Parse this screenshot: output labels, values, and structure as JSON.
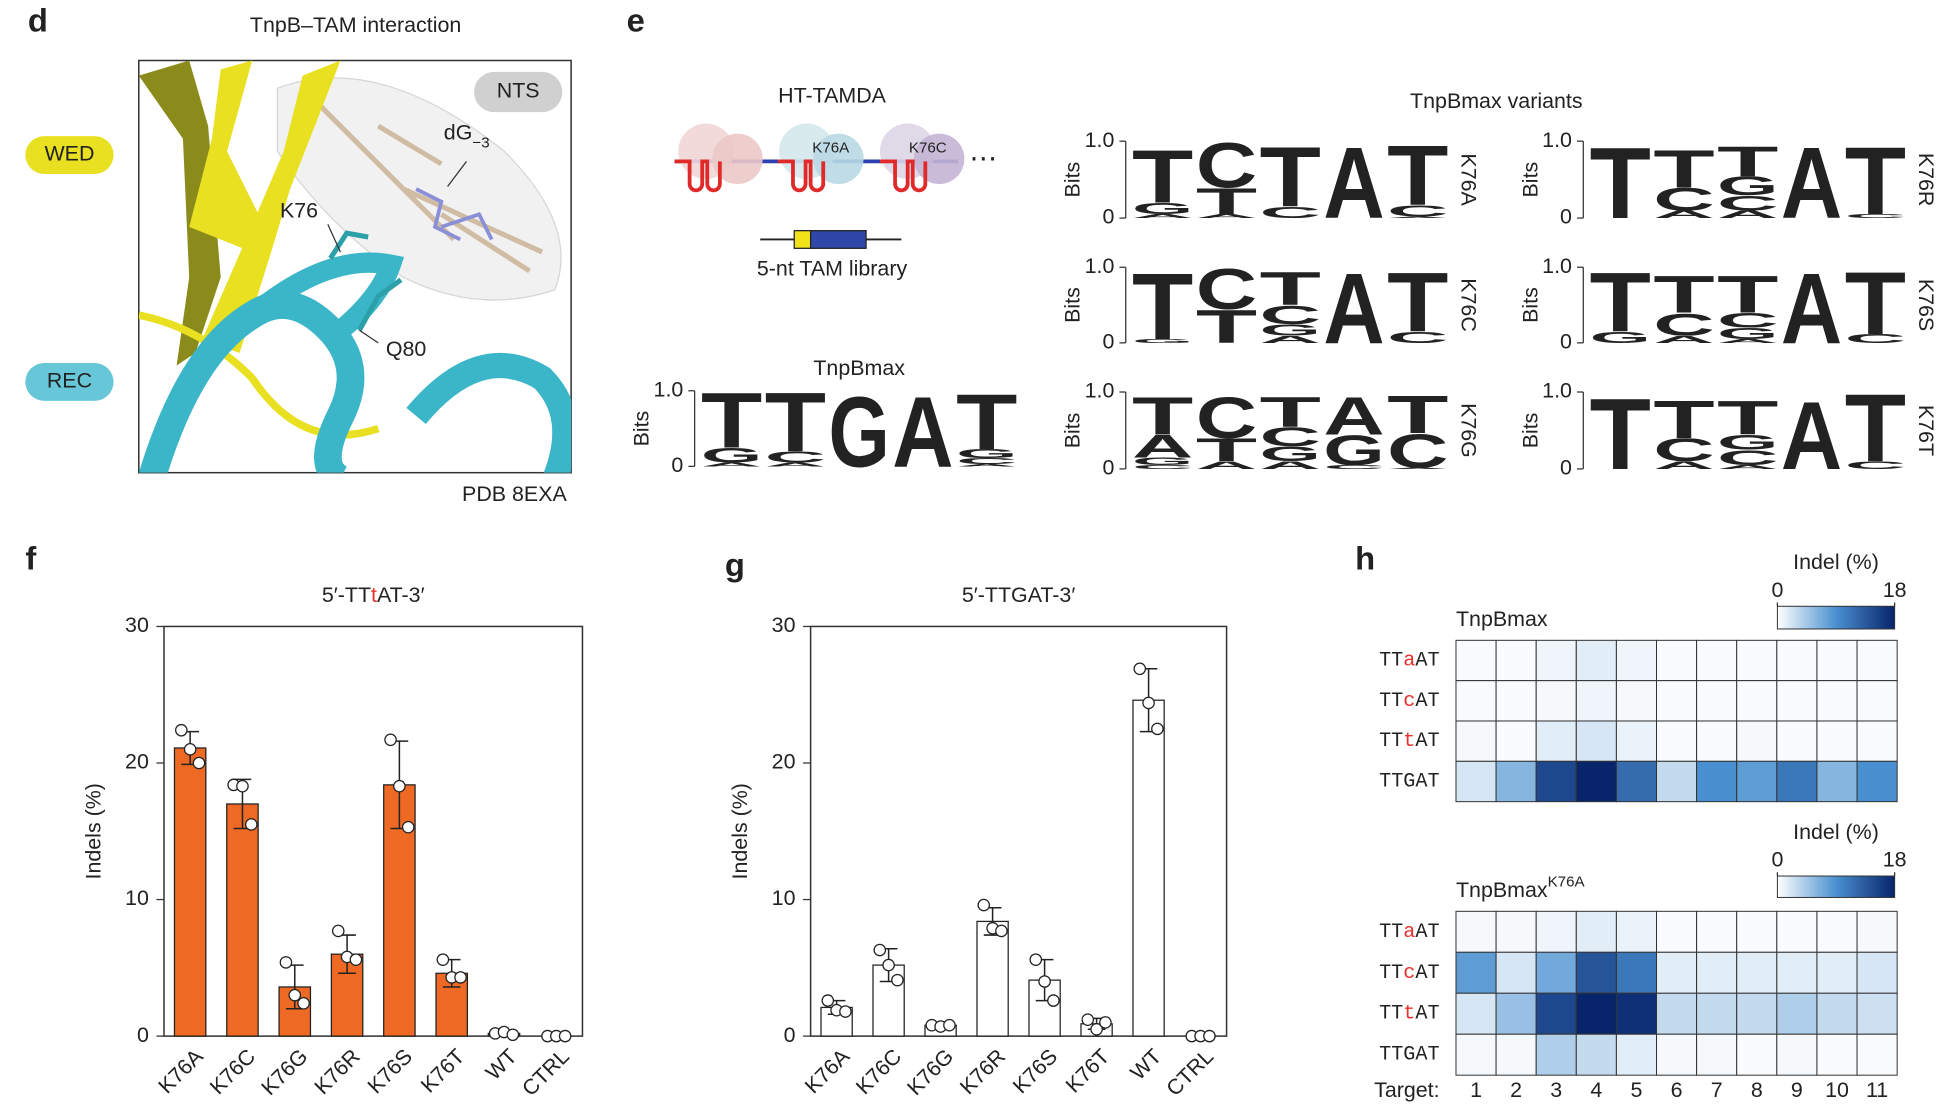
{
  "panel_labels": [
    "d",
    "e",
    "f",
    "g",
    "h"
  ],
  "structure": {
    "title": "TnpB–TAM interaction",
    "wed": "WED",
    "rec": "REC",
    "nts": "NTS",
    "nucleotide": "dG",
    "nucleotide_subscript": "−3",
    "residues": [
      "K76",
      "Q80"
    ],
    "source": "PDB 8EXA"
  },
  "schematic": {
    "title": "HT-TAMDA",
    "variants": [
      "K76A",
      "K76C"
    ],
    "ellipsis": "⋯",
    "library": "5-nt TAM library"
  },
  "logo_group_title": "TnpBmax variants",
  "chart_data": [
    {
      "type": "logo",
      "title": "TnpBmax",
      "ylabel": "Bits",
      "ylim": [
        0,
        1
      ],
      "yticks": [
        0,
        {
          "value": 1,
          "label": "1.0"
        }
      ],
      "series": [
        {
          "name": "A",
          "color": "#1f8f3a",
          "values": [
            0.05,
            0.05,
            0,
            0.95,
            0.03
          ]
        },
        {
          "name": "C",
          "color": "#2a3fb0",
          "values": [
            0,
            0.15,
            0,
            0,
            0.08
          ]
        },
        {
          "name": "G",
          "color": "#f5a01a",
          "values": [
            0.2,
            0,
            0.95,
            0,
            0.12
          ]
        },
        {
          "name": "T",
          "color": "#e8242a",
          "values": [
            0.75,
            0.8,
            0,
            0,
            0.75
          ]
        }
      ]
    },
    {
      "type": "logo",
      "label": "K76A",
      "ylabel": "Bits",
      "ylim": [
        0,
        1
      ],
      "yticks": [
        0,
        {
          "value": 1,
          "label": "1.0"
        }
      ],
      "series": [
        {
          "name": "A",
          "color": "#1f8f3a",
          "values": [
            0.05,
            0.05,
            0,
            0.95,
            0.02
          ]
        },
        {
          "name": "C",
          "color": "#2a3fb0",
          "values": [
            0,
            0.6,
            0.15,
            0,
            0.15
          ]
        },
        {
          "name": "G",
          "color": "#f5a01a",
          "values": [
            0.15,
            0,
            0,
            0,
            0
          ]
        },
        {
          "name": "T",
          "color": "#e8242a",
          "values": [
            0.7,
            0.35,
            0.8,
            0,
            0.8
          ]
        }
      ]
    },
    {
      "type": "logo",
      "label": "K76C",
      "ylabel": "Bits",
      "ylim": [
        0,
        1
      ],
      "yticks": [
        0,
        {
          "value": 1,
          "label": "1.0"
        }
      ],
      "series": [
        {
          "name": "A",
          "color": "#1f8f3a",
          "values": [
            0,
            0,
            0.1,
            0.95,
            0
          ]
        },
        {
          "name": "C",
          "color": "#2a3fb0",
          "values": [
            0,
            0.55,
            0.25,
            0,
            0.15
          ]
        },
        {
          "name": "G",
          "color": "#f5a01a",
          "values": [
            0.05,
            0,
            0.15,
            0,
            0
          ]
        },
        {
          "name": "T",
          "color": "#e8242a",
          "values": [
            0.9,
            0.45,
            0.45,
            0,
            0.8
          ]
        }
      ]
    },
    {
      "type": "logo",
      "label": "K76G",
      "ylabel": "Bits",
      "ylim": [
        0,
        1
      ],
      "yticks": [
        0,
        {
          "value": 1,
          "label": "1.0"
        }
      ],
      "series": [
        {
          "name": "A",
          "color": "#1f8f3a",
          "values": [
            0.3,
            0.1,
            0.1,
            0.5,
            0.02
          ]
        },
        {
          "name": "C",
          "color": "#2a3fb0",
          "values": [
            0.05,
            0.55,
            0.25,
            0.05,
            0.45
          ]
        },
        {
          "name": "G",
          "color": "#f5a01a",
          "values": [
            0.1,
            0,
            0.2,
            0.4,
            0
          ]
        },
        {
          "name": "T",
          "color": "#e8242a",
          "values": [
            0.5,
            0.3,
            0.4,
            0,
            0.5
          ]
        }
      ]
    },
    {
      "type": "logo",
      "label": "K76R",
      "ylabel": "Bits",
      "ylim": [
        0,
        1
      ],
      "yticks": [
        0,
        {
          "value": 1,
          "label": "1.0"
        }
      ],
      "series": [
        {
          "name": "A",
          "color": "#1f8f3a",
          "values": [
            0,
            0.1,
            0.1,
            0.95,
            0
          ]
        },
        {
          "name": "C",
          "color": "#2a3fb0",
          "values": [
            0,
            0.3,
            0.2,
            0,
            0.05
          ]
        },
        {
          "name": "G",
          "color": "#f5a01a",
          "values": [
            0,
            0,
            0.25,
            0,
            0
          ]
        },
        {
          "name": "T",
          "color": "#e8242a",
          "values": [
            0.95,
            0.5,
            0.4,
            0,
            0.9
          ]
        }
      ]
    },
    {
      "type": "logo",
      "label": "K76S",
      "ylabel": "Bits",
      "ylim": [
        0,
        1
      ],
      "yticks": [
        0,
        {
          "value": 1,
          "label": "1.0"
        }
      ],
      "series": [
        {
          "name": "A",
          "color": "#1f8f3a",
          "values": [
            0,
            0.1,
            0.05,
            0.95,
            0
          ]
        },
        {
          "name": "C",
          "color": "#2a3fb0",
          "values": [
            0,
            0.3,
            0.2,
            0,
            0.12
          ]
        },
        {
          "name": "G",
          "color": "#f5a01a",
          "values": [
            0.15,
            0,
            0.15,
            0,
            0
          ]
        },
        {
          "name": "T",
          "color": "#e8242a",
          "values": [
            0.8,
            0.5,
            0.5,
            0,
            0.85
          ]
        }
      ]
    },
    {
      "type": "logo",
      "label": "K76T",
      "ylabel": "Bits",
      "ylim": [
        0,
        1
      ],
      "yticks": [
        0,
        {
          "value": 1,
          "label": "1.0"
        }
      ],
      "series": [
        {
          "name": "A",
          "color": "#1f8f3a",
          "values": [
            0,
            0.1,
            0.05,
            0.9,
            0
          ]
        },
        {
          "name": "C",
          "color": "#2a3fb0",
          "values": [
            0,
            0.3,
            0.2,
            0,
            0.1
          ]
        },
        {
          "name": "G",
          "color": "#f5a01a",
          "values": [
            0,
            0,
            0.2,
            0,
            0
          ]
        },
        {
          "name": "T",
          "color": "#e8242a",
          "values": [
            0.95,
            0.5,
            0.45,
            0,
            0.9
          ]
        }
      ]
    },
    {
      "type": "bar",
      "title": "5′-TTtAT-3′",
      "highlight_color": "#e8312f",
      "ylabel": "Indels (%)",
      "color": "#ee6a24",
      "categories": [
        "K76A",
        "K76C",
        "K76G",
        "K76R",
        "K76S",
        "K76T",
        "WT",
        "CTRL"
      ],
      "values": [
        21.1,
        17.0,
        3.6,
        6.0,
        18.4,
        4.6,
        0.2,
        0
      ],
      "errors": [
        1.2,
        1.8,
        1.6,
        1.4,
        3.2,
        1.0,
        0.1,
        0
      ],
      "points": [
        [
          22.4,
          21.0,
          20.0
        ],
        [
          18.4,
          18.3,
          15.5
        ],
        [
          5.4,
          3.0,
          2.4
        ],
        [
          7.7,
          5.8,
          5.6
        ],
        [
          21.7,
          18.3,
          15.3
        ],
        [
          5.6,
          4.3,
          4.3
        ],
        [
          0.2,
          0.3,
          0.1
        ],
        [
          0,
          0,
          0
        ]
      ],
      "ylim": [
        0,
        30
      ],
      "yticks": [
        0,
        10,
        20,
        30
      ]
    },
    {
      "type": "bar",
      "title": "5′-TTGAT-3′",
      "highlight_color": "#e8312f",
      "ylabel": "Indels (%)",
      "color": "#ffffff",
      "categories": [
        "K76A",
        "K76C",
        "K76G",
        "K76R",
        "K76S",
        "K76T",
        "WT",
        "CTRL"
      ],
      "values": [
        2.1,
        5.2,
        0.8,
        8.4,
        4.1,
        0.9,
        24.6,
        0
      ],
      "errors": [
        0.5,
        1.2,
        0.2,
        1.0,
        1.5,
        0.4,
        2.3,
        0
      ],
      "points": [
        [
          2.6,
          1.9,
          1.8
        ],
        [
          6.3,
          5.2,
          4.1
        ],
        [
          0.8,
          0.7,
          0.8
        ],
        [
          9.6,
          7.9,
          7.7
        ],
        [
          5.6,
          4.0,
          2.6
        ],
        [
          1.2,
          0.5,
          1.0
        ],
        [
          26.9,
          24.4,
          22.5
        ],
        [
          0,
          0,
          0
        ]
      ],
      "ylim": [
        0,
        30
      ],
      "yticks": [
        0,
        10,
        20,
        30
      ]
    },
    {
      "type": "heatmap",
      "title": "TnpBmax",
      "highlight_color": "#e8312f",
      "rows": [
        "TTaAT",
        "TTcAT",
        "TTtAT",
        "TTGAT"
      ],
      "values": [
        [
          0.3,
          0.3,
          0.8,
          1.5,
          0.8,
          0.3,
          0.3,
          0.3,
          0.3,
          0.3,
          0.3
        ],
        [
          0.3,
          0.3,
          0.5,
          0.8,
          0.5,
          0.3,
          0.3,
          0.3,
          0.3,
          0.3,
          0.3
        ],
        [
          0.5,
          0.3,
          1.5,
          2,
          1,
          0.3,
          0.3,
          0.5,
          0.3,
          0.3,
          0.3
        ],
        [
          2,
          6,
          15,
          18,
          12,
          3,
          9,
          8,
          11,
          6,
          9
        ]
      ],
      "clim": [
        0,
        18
      ],
      "colorbar_title": "Indel (%)",
      "colorbar_ticks": [
        0,
        18
      ],
      "colors": [
        "#ffffff",
        "#4a90d0",
        "#08246b"
      ]
    },
    {
      "type": "heatmap",
      "title": "TnpBmax",
      "title_superscript": "K76A",
      "highlight_color": "#e8312f",
      "rows": [
        "TTaAT",
        "TTcAT",
        "TTtAT",
        "TTGAT"
      ],
      "columns": [
        1,
        2,
        3,
        4,
        5,
        6,
        7,
        8,
        9,
        10,
        11
      ],
      "xlabel": "Target:",
      "values": [
        [
          0.5,
          0.5,
          0.8,
          1.5,
          1,
          0.3,
          0.3,
          0.3,
          0.3,
          0.3,
          0.5
        ],
        [
          8,
          2,
          7,
          14,
          11,
          1.5,
          1.5,
          1.5,
          1.5,
          1.5,
          2
        ],
        [
          2,
          5,
          15,
          18,
          17,
          3,
          3,
          3,
          4,
          3,
          2.5
        ],
        [
          0.5,
          0.5,
          4,
          3,
          1.5,
          0.5,
          0.5,
          0.3,
          0.5,
          0.3,
          0.3
        ]
      ],
      "clim": [
        0,
        18
      ],
      "colorbar_title": "Indel (%)",
      "colorbar_ticks": [
        0,
        18
      ],
      "colors": [
        "#ffffff",
        "#4a90d0",
        "#08246b"
      ]
    }
  ]
}
